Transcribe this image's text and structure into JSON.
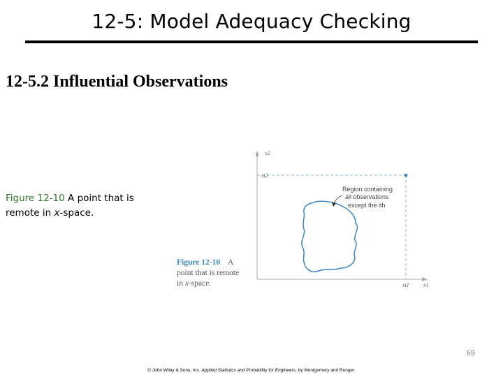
{
  "slide": {
    "title": "12-5: Model Adequacy Checking",
    "section_heading": "12-5.2 Influential Observations",
    "page_number": "69"
  },
  "caption": {
    "figure_label": "Figure 12-10",
    "text_before_italic": " A point that is remote in ",
    "italic_text": "x",
    "text_after_italic": "-space."
  },
  "figure": {
    "inner_caption_label": "Figure 12-10",
    "inner_caption_label_tail": "A",
    "inner_caption_line2": "point that is remote",
    "inner_caption_line3_prefix": "in ",
    "inner_caption_line3_italic": "x",
    "inner_caption_line3_suffix": "-space.",
    "axis_x_label": "x1",
    "axis_y_label": "x2",
    "x_point_label": "xi1",
    "y_point_label": "xi2",
    "annotation_lines": [
      "Region containing",
      "all observations",
      "except the ith"
    ],
    "colors": {
      "region_outline": "#3a86c8",
      "point": "#3a86c8",
      "dashed": "#8ab4d8",
      "axis": "#aaaaaa"
    }
  },
  "footer": {
    "prefix": "© John Wiley & Sons, Inc. ",
    "book_title": "Applied Statistics and Probability for Engineers",
    "suffix": ", by Montgomery and Runger."
  }
}
